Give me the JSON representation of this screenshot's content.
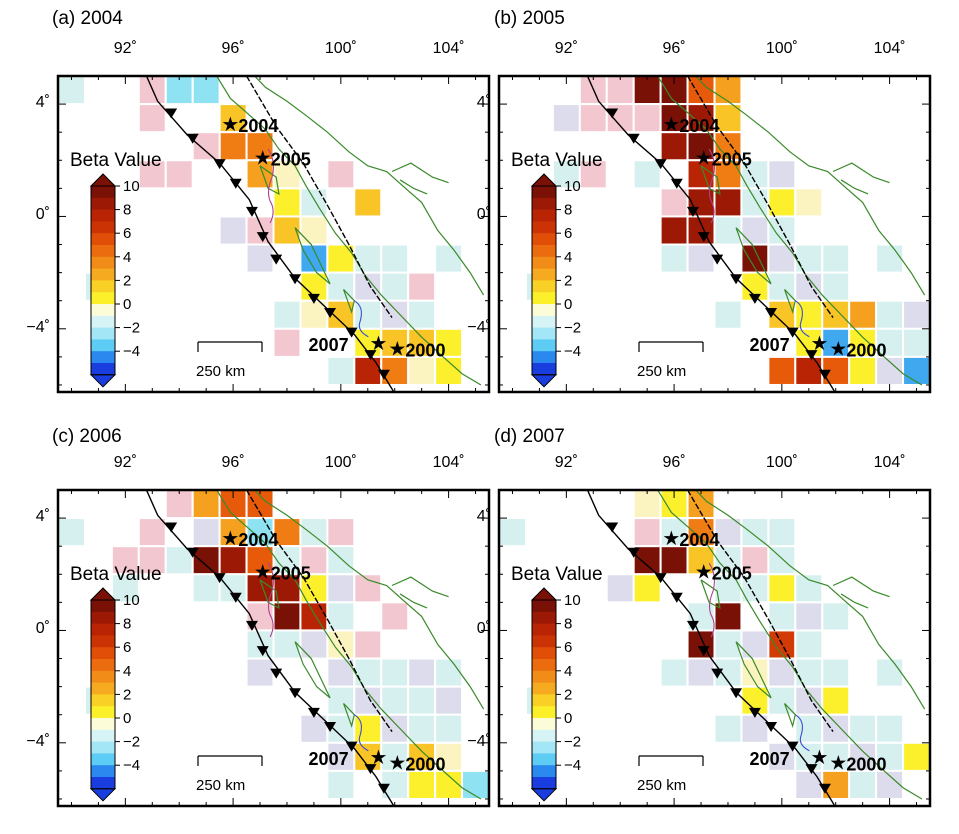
{
  "colorbar": {
    "title": "Beta Value",
    "ticks": [
      "10",
      "8",
      "6",
      "4",
      "2",
      "0",
      "−2",
      "−4"
    ]
  },
  "axes": {
    "lon_ticks": [
      "92˚",
      "96˚",
      "100˚",
      "104˚"
    ],
    "lat_ticks": [
      "4˚",
      "0˚",
      "−4˚"
    ]
  },
  "scale_bar": "250 km",
  "earthquakes": [
    {
      "label": "2004",
      "lon": 95.9,
      "lat": 3.3
    },
    {
      "label": "2005",
      "lon": 97.1,
      "lat": 2.1
    },
    {
      "label": "2007",
      "lon": 101.4,
      "lat": -4.5
    },
    {
      "label": "2000",
      "lon": 102.1,
      "lat": -4.7
    }
  ],
  "colors": {
    "coastline": "#3a8a2a",
    "trench": "#000000",
    "grid_outline": "#ffffff"
  },
  "panels": [
    {
      "title": "(a) 2004",
      "cells": [
        [
          90,
          4.5,
          -1
        ],
        [
          93,
          4.5,
          1
        ],
        [
          94,
          4.5,
          -2
        ],
        [
          95,
          4.5,
          -2
        ],
        [
          96,
          3.5,
          3
        ],
        [
          93,
          3.5,
          1
        ],
        [
          96,
          2.5,
          5
        ],
        [
          97,
          2.5,
          5
        ],
        [
          95,
          2.5,
          1
        ],
        [
          93,
          1.5,
          1
        ],
        [
          94,
          1.5,
          1
        ],
        [
          97,
          1.5,
          4
        ],
        [
          98,
          1.5,
          0
        ],
        [
          100,
          1.5,
          1
        ],
        [
          99,
          0.5,
          -1
        ],
        [
          98,
          0.5,
          2
        ],
        [
          101,
          0.5,
          3
        ],
        [
          96,
          -0.5,
          -1
        ],
        [
          97,
          -0.5,
          1
        ],
        [
          98,
          -0.5,
          3
        ],
        [
          99,
          -0.5,
          0
        ],
        [
          97,
          -1.5,
          -1
        ],
        [
          99,
          -1.5,
          -3
        ],
        [
          100,
          -1.5,
          2
        ],
        [
          101,
          -1.5,
          -1
        ],
        [
          102,
          -1.5,
          -1
        ],
        [
          104,
          -1.5,
          -1
        ],
        [
          91,
          -2.5,
          -1
        ],
        [
          99,
          -2.5,
          2
        ],
        [
          100,
          -2.5,
          -1
        ],
        [
          101,
          -2.5,
          -1
        ],
        [
          102,
          -2.5,
          -1
        ],
        [
          103,
          -2.5,
          1
        ],
        [
          98,
          -3.5,
          -1
        ],
        [
          99,
          -3.5,
          0
        ],
        [
          100,
          -3.5,
          3
        ],
        [
          101,
          -3.5,
          -1
        ],
        [
          102,
          -3.5,
          -1
        ],
        [
          103,
          -3.5,
          -1
        ],
        [
          98,
          -4.5,
          1
        ],
        [
          101,
          -4.5,
          2
        ],
        [
          102,
          -4.5,
          3
        ],
        [
          103,
          -4.5,
          3
        ],
        [
          104,
          -4.5,
          2
        ],
        [
          100,
          -5.5,
          -1
        ],
        [
          101,
          -5.5,
          8
        ],
        [
          102,
          -5.5,
          5
        ],
        [
          103,
          -5.5,
          0
        ],
        [
          104,
          -5.5,
          2
        ]
      ]
    },
    {
      "title": "(b) 2005",
      "cells": [
        [
          93,
          4.5,
          1
        ],
        [
          94,
          4.5,
          1
        ],
        [
          95,
          4.5,
          10
        ],
        [
          96,
          4.5,
          10
        ],
        [
          97,
          4.5,
          6
        ],
        [
          98,
          4.5,
          4
        ],
        [
          92,
          3.5,
          -1
        ],
        [
          93,
          3.5,
          1
        ],
        [
          94,
          3.5,
          1
        ],
        [
          95,
          3.5,
          1
        ],
        [
          96,
          3.5,
          10
        ],
        [
          97,
          3.5,
          9
        ],
        [
          98,
          3.5,
          3
        ],
        [
          96,
          2.5,
          9
        ],
        [
          97,
          2.5,
          10
        ],
        [
          98,
          2.5,
          5
        ],
        [
          92,
          1.5,
          -1
        ],
        [
          93,
          1.5,
          1
        ],
        [
          95,
          1.5,
          -1
        ],
        [
          97,
          1.5,
          8
        ],
        [
          98,
          1.5,
          5
        ],
        [
          99,
          1.5,
          -1
        ],
        [
          100,
          1.5,
          -1
        ],
        [
          96,
          0.5,
          1
        ],
        [
          97,
          0.5,
          9
        ],
        [
          98,
          0.5,
          9
        ],
        [
          99,
          0.5,
          -1
        ],
        [
          100,
          0.5,
          2
        ],
        [
          101,
          0.5,
          0
        ],
        [
          96,
          -0.5,
          9
        ],
        [
          97,
          -0.5,
          9
        ],
        [
          98,
          -0.5,
          -1
        ],
        [
          99,
          -0.5,
          -1
        ],
        [
          100,
          -0.5,
          -1
        ],
        [
          96,
          -1.5,
          -1
        ],
        [
          97,
          -1.5,
          -1
        ],
        [
          99,
          -1.5,
          10
        ],
        [
          100,
          -1.5,
          -1
        ],
        [
          101,
          -1.5,
          -1
        ],
        [
          102,
          -1.5,
          -1
        ],
        [
          104,
          -1.5,
          -1
        ],
        [
          91,
          -2.5,
          -1
        ],
        [
          99,
          -2.5,
          2
        ],
        [
          100,
          -2.5,
          -1
        ],
        [
          101,
          -2.5,
          -1
        ],
        [
          102,
          -2.5,
          -1
        ],
        [
          98,
          -3.5,
          -1
        ],
        [
          100,
          -3.5,
          3
        ],
        [
          101,
          -3.5,
          2
        ],
        [
          102,
          -3.5,
          3
        ],
        [
          103,
          -3.5,
          4
        ],
        [
          104,
          -3.5,
          -1
        ],
        [
          105,
          -3.5,
          -1
        ],
        [
          101,
          -4.5,
          2
        ],
        [
          102,
          -4.5,
          -3
        ],
        [
          103,
          -4.5,
          2
        ],
        [
          104,
          -4.5,
          -1
        ],
        [
          105,
          -4.5,
          -1
        ],
        [
          100,
          -5.5,
          6
        ],
        [
          101,
          -5.5,
          8
        ],
        [
          102,
          -5.5,
          6
        ],
        [
          103,
          -5.5,
          2
        ],
        [
          104,
          -5.5,
          -1
        ],
        [
          105,
          -5.5,
          -3
        ]
      ]
    },
    {
      "title": "(c) 2006",
      "cells": [
        [
          94,
          4.5,
          1
        ],
        [
          95,
          4.5,
          4
        ],
        [
          96,
          4.5,
          6
        ],
        [
          97,
          4.5,
          6
        ],
        [
          90,
          3.5,
          -1
        ],
        [
          93,
          3.5,
          1
        ],
        [
          95,
          3.5,
          -1
        ],
        [
          96,
          3.5,
          4
        ],
        [
          97,
          3.5,
          -2
        ],
        [
          98,
          3.5,
          5
        ],
        [
          99,
          3.5,
          -1
        ],
        [
          100,
          3.5,
          1
        ],
        [
          92,
          2.5,
          1
        ],
        [
          93,
          2.5,
          1
        ],
        [
          94,
          2.5,
          -1
        ],
        [
          95,
          2.5,
          10
        ],
        [
          96,
          2.5,
          9
        ],
        [
          97,
          2.5,
          6
        ],
        [
          98,
          2.5,
          -1
        ],
        [
          99,
          2.5,
          1
        ],
        [
          100,
          2.5,
          -1
        ],
        [
          92,
          1.5,
          -1
        ],
        [
          95,
          1.5,
          -1
        ],
        [
          96,
          1.5,
          -1
        ],
        [
          97,
          1.5,
          9
        ],
        [
          98,
          1.5,
          9
        ],
        [
          99,
          1.5,
          2
        ],
        [
          100,
          1.5,
          -1
        ],
        [
          101,
          1.5,
          1
        ],
        [
          97,
          0.5,
          1
        ],
        [
          98,
          0.5,
          10
        ],
        [
          99,
          0.5,
          8
        ],
        [
          100,
          0.5,
          -1
        ],
        [
          102,
          0.5,
          1
        ],
        [
          97,
          -0.5,
          -1
        ],
        [
          98,
          -0.5,
          -1
        ],
        [
          99,
          -0.5,
          -1
        ],
        [
          100,
          -0.5,
          0
        ],
        [
          101,
          -0.5,
          1
        ],
        [
          97,
          -1.5,
          -1
        ],
        [
          100,
          -1.5,
          -1
        ],
        [
          101,
          -1.5,
          -1
        ],
        [
          102,
          -1.5,
          -1
        ],
        [
          103,
          -1.5,
          -1
        ],
        [
          104,
          -1.5,
          -1
        ],
        [
          91,
          -2.5,
          -1
        ],
        [
          100,
          -2.5,
          -1
        ],
        [
          101,
          -2.5,
          -1
        ],
        [
          102,
          -2.5,
          -1
        ],
        [
          103,
          -2.5,
          -1
        ],
        [
          104,
          -2.5,
          -1
        ],
        [
          99,
          -3.5,
          -1
        ],
        [
          100,
          -3.5,
          -1
        ],
        [
          101,
          -3.5,
          2
        ],
        [
          102,
          -3.5,
          -1
        ],
        [
          103,
          -3.5,
          -1
        ],
        [
          104,
          -3.5,
          -1
        ],
        [
          100,
          -4.5,
          -1
        ],
        [
          101,
          -4.5,
          3
        ],
        [
          102,
          -4.5,
          -1
        ],
        [
          103,
          -4.5,
          3
        ],
        [
          104,
          -4.5,
          0
        ],
        [
          100,
          -5.5,
          -1
        ],
        [
          102,
          -5.5,
          -1
        ],
        [
          103,
          -5.5,
          2
        ],
        [
          104,
          -5.5,
          2
        ],
        [
          105,
          -5.5,
          -2
        ]
      ]
    },
    {
      "title": "(d) 2007",
      "cells": [
        [
          95,
          4.5,
          0
        ],
        [
          96,
          4.5,
          2
        ],
        [
          97,
          4.5,
          4
        ],
        [
          90,
          3.5,
          -1
        ],
        [
          95,
          3.5,
          1
        ],
        [
          96,
          3.5,
          -1
        ],
        [
          97,
          3.5,
          5
        ],
        [
          98,
          3.5,
          -1
        ],
        [
          99,
          3.5,
          -1
        ],
        [
          100,
          3.5,
          -1
        ],
        [
          95,
          2.5,
          10
        ],
        [
          96,
          2.5,
          10
        ],
        [
          97,
          2.5,
          3
        ],
        [
          98,
          2.5,
          -1
        ],
        [
          99,
          2.5,
          1
        ],
        [
          100,
          2.5,
          -1
        ],
        [
          94,
          1.5,
          -1
        ],
        [
          95,
          1.5,
          2
        ],
        [
          98,
          1.5,
          -1
        ],
        [
          99,
          1.5,
          -1
        ],
        [
          100,
          1.5,
          2
        ],
        [
          101,
          1.5,
          -1
        ],
        [
          97,
          0.5,
          -1
        ],
        [
          98,
          0.5,
          10
        ],
        [
          100,
          0.5,
          -1
        ],
        [
          101,
          0.5,
          -1
        ],
        [
          102,
          0.5,
          -1
        ],
        [
          97,
          -0.5,
          10
        ],
        [
          98,
          -0.5,
          -1
        ],
        [
          99,
          -0.5,
          -1
        ],
        [
          100,
          -0.5,
          7
        ],
        [
          101,
          -0.5,
          -1
        ],
        [
          96,
          -1.5,
          -1
        ],
        [
          97,
          -1.5,
          -1
        ],
        [
          98,
          -1.5,
          -1
        ],
        [
          99,
          -1.5,
          0
        ],
        [
          100,
          -1.5,
          -1
        ],
        [
          101,
          -1.5,
          -1
        ],
        [
          102,
          -1.5,
          -1
        ],
        [
          104,
          -1.5,
          -1
        ],
        [
          91,
          -2.5,
          -1
        ],
        [
          99,
          -2.5,
          2
        ],
        [
          100,
          -2.5,
          -1
        ],
        [
          101,
          -2.5,
          -1
        ],
        [
          102,
          -2.5,
          2
        ],
        [
          98,
          -3.5,
          -1
        ],
        [
          99,
          -3.5,
          -1
        ],
        [
          101,
          -3.5,
          -1
        ],
        [
          102,
          -3.5,
          -1
        ],
        [
          103,
          -3.5,
          -1
        ],
        [
          104,
          -3.5,
          -1
        ],
        [
          100,
          -4.5,
          -1
        ],
        [
          101,
          -4.5,
          -1
        ],
        [
          102,
          -4.5,
          -1
        ],
        [
          103,
          -4.5,
          -1
        ],
        [
          104,
          -4.5,
          -1
        ],
        [
          105,
          -4.5,
          2
        ],
        [
          101,
          -5.5,
          -1
        ],
        [
          102,
          -5.5,
          4
        ],
        [
          103,
          -5.5,
          -1
        ],
        [
          104,
          -5.5,
          -1
        ]
      ]
    }
  ]
}
